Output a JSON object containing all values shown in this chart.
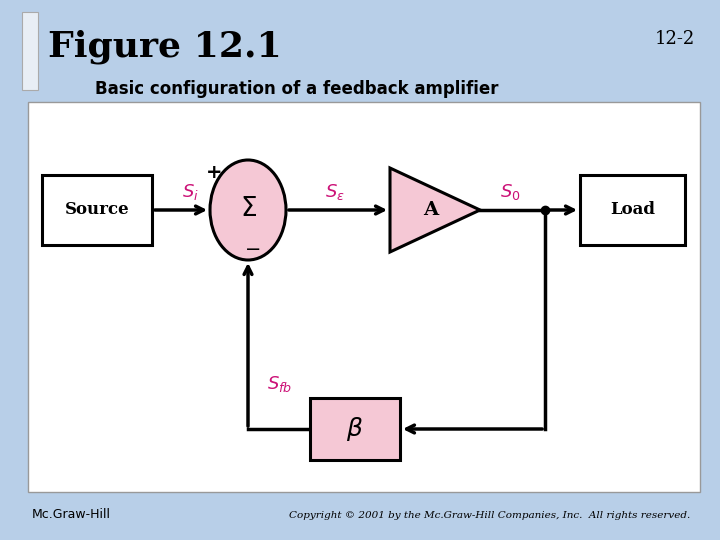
{
  "title": "Figure 12.1",
  "title_number": "12-2",
  "subtitle": "Basic configuration of a feedback amplifier",
  "bg_color": "#b8cfe8",
  "block_fill": "#ffffff",
  "pink_fill": "#f5c8d5",
  "text_color_pink": "#cc1177",
  "footer_left": "Mc.Graw-Hill",
  "footer_right": "Copyright © 2001 by the Mc.Graw-Hill Companies, Inc.  All rights reserved."
}
